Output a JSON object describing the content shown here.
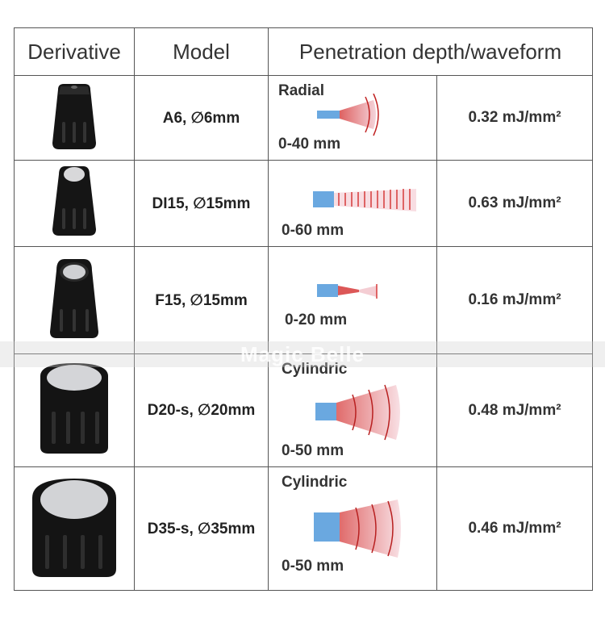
{
  "headers": {
    "derivative": "Derivative",
    "model": "Model",
    "penetration": "Penetration depth/waveform"
  },
  "rows": [
    {
      "model": "A6, ∅6mm",
      "wave_label": "Radial",
      "range": "0-40 mm",
      "energy": "0.32 mJ/mm²"
    },
    {
      "model": "DI15, ∅15mm",
      "wave_label": "",
      "range": "0-60 mm",
      "energy": "0.63 mJ/mm²"
    },
    {
      "model": "F15, ∅15mm",
      "wave_label": "",
      "range": "0-20 mm",
      "energy": "0.16 mJ/mm²"
    },
    {
      "model": "D20-s, ∅20mm",
      "wave_label": "Cylindric",
      "range": "0-50 mm",
      "energy": "0.48 mJ/mm²"
    },
    {
      "model": "D35-s, ∅35mm",
      "wave_label": "Cylindric",
      "range": "0-50 mm",
      "energy": "0.46 mJ/mm²"
    }
  ],
  "watermark": "Magic Belle",
  "colors": {
    "border": "#555555",
    "wave_red": "#d63a3a",
    "emitter_blue": "#6aa8e0"
  }
}
